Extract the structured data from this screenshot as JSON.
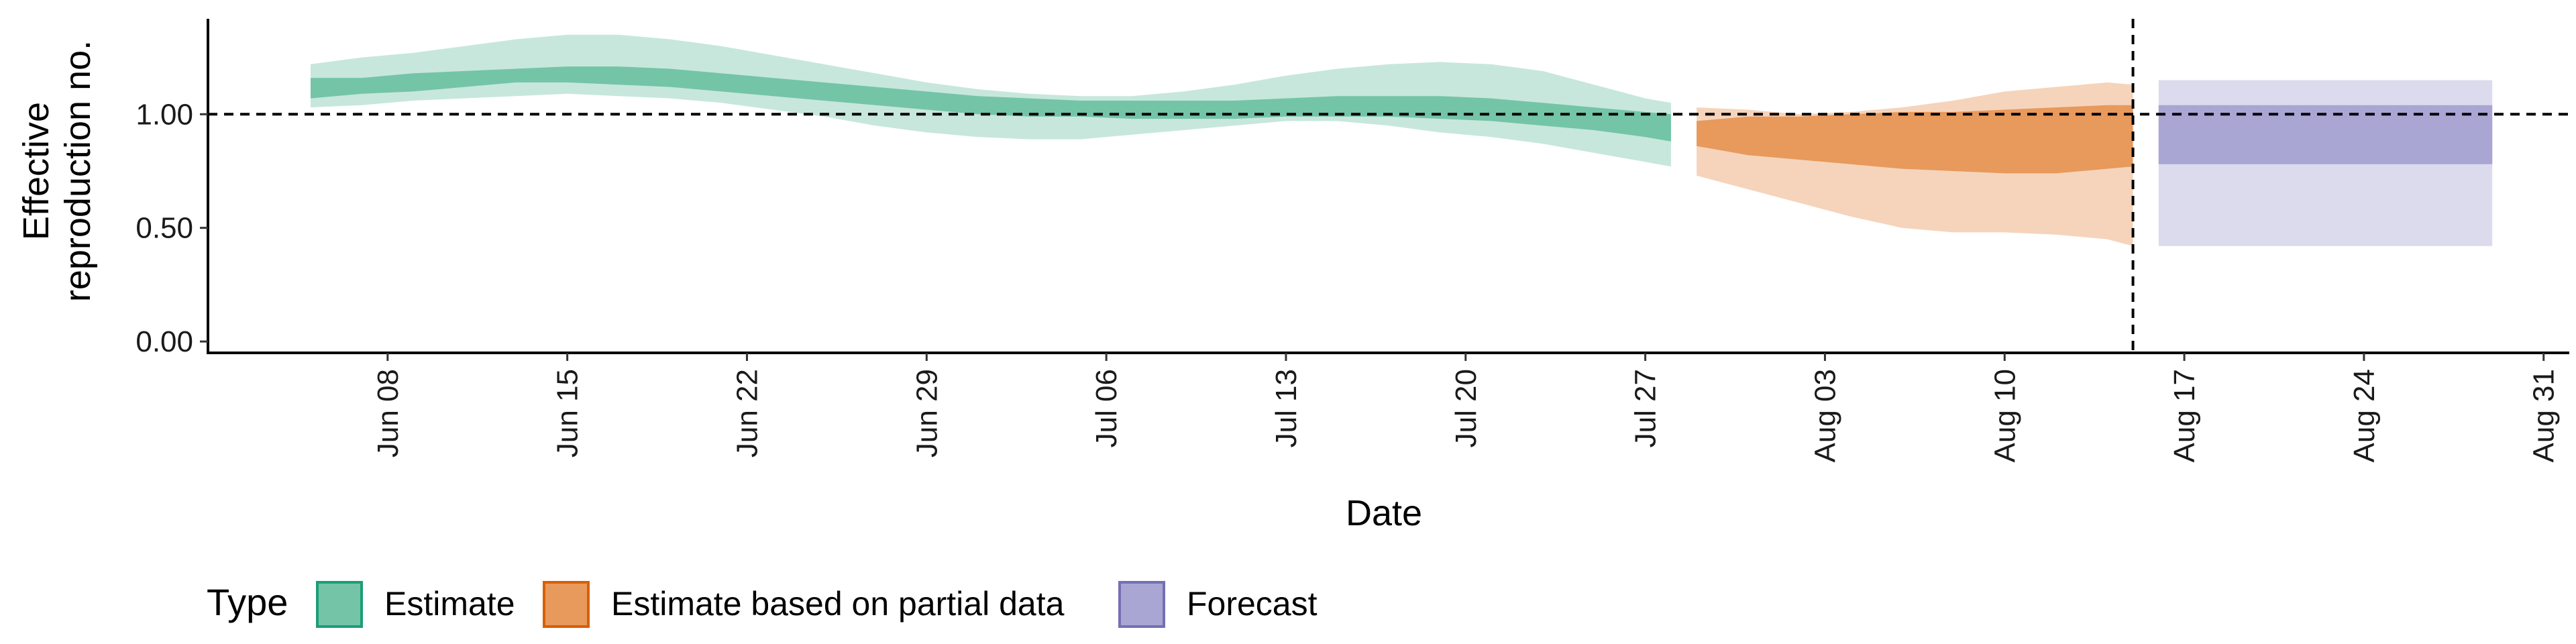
{
  "chart_data": {
    "type": "area",
    "title": "",
    "xlabel": "Date",
    "ylabel": [
      "Effective",
      "reproduction no."
    ],
    "x_type": "date",
    "xlim": [
      "2020-06-01",
      "2020-09-01"
    ],
    "ylim": [
      -0.05,
      1.42
    ],
    "x_ticks": [
      {
        "date": "2020-06-08",
        "label": "Jun 08"
      },
      {
        "date": "2020-06-15",
        "label": "Jun 15"
      },
      {
        "date": "2020-06-22",
        "label": "Jun 22"
      },
      {
        "date": "2020-06-29",
        "label": "Jun 29"
      },
      {
        "date": "2020-07-06",
        "label": "Jul 06"
      },
      {
        "date": "2020-07-13",
        "label": "Jul 13"
      },
      {
        "date": "2020-07-20",
        "label": "Jul 20"
      },
      {
        "date": "2020-07-27",
        "label": "Jul 27"
      },
      {
        "date": "2020-08-03",
        "label": "Aug 03"
      },
      {
        "date": "2020-08-10",
        "label": "Aug 10"
      },
      {
        "date": "2020-08-17",
        "label": "Aug 17"
      },
      {
        "date": "2020-08-24",
        "label": "Aug 24"
      },
      {
        "date": "2020-08-31",
        "label": "Aug 31"
      }
    ],
    "y_ticks": [
      {
        "value": 0,
        "label": "0.00"
      },
      {
        "value": 0.5,
        "label": "0.50"
      },
      {
        "value": 1,
        "label": "1.00"
      }
    ],
    "reference_lines": {
      "horizontal": 1.0,
      "vertical_date": "2020-08-15"
    },
    "legend": {
      "title": "Type",
      "position": "bottom-left"
    },
    "series": [
      {
        "name": "Estimate",
        "color": "#1b9e77",
        "fill": "#74c4a8",
        "fill_light": "#c7e7dc",
        "x": [
          "2020-06-05",
          "2020-06-07",
          "2020-06-09",
          "2020-06-11",
          "2020-06-13",
          "2020-06-15",
          "2020-06-17",
          "2020-06-19",
          "2020-06-21",
          "2020-06-23",
          "2020-06-25",
          "2020-06-27",
          "2020-06-29",
          "2020-07-01",
          "2020-07-03",
          "2020-07-05",
          "2020-07-07",
          "2020-07-09",
          "2020-07-11",
          "2020-07-13",
          "2020-07-15",
          "2020-07-17",
          "2020-07-19",
          "2020-07-21",
          "2020-07-23",
          "2020-07-25",
          "2020-07-27",
          "2020-07-28"
        ],
        "inner_lower": [
          1.07,
          1.09,
          1.1,
          1.12,
          1.14,
          1.14,
          1.13,
          1.12,
          1.1,
          1.08,
          1.06,
          1.04,
          1.02,
          1.0,
          0.99,
          0.99,
          0.98,
          0.98,
          0.98,
          0.99,
          0.99,
          0.99,
          0.98,
          0.97,
          0.95,
          0.93,
          0.9,
          0.88
        ],
        "inner_upper": [
          1.16,
          1.16,
          1.18,
          1.19,
          1.2,
          1.21,
          1.21,
          1.2,
          1.18,
          1.16,
          1.14,
          1.12,
          1.1,
          1.08,
          1.07,
          1.06,
          1.06,
          1.06,
          1.06,
          1.07,
          1.08,
          1.08,
          1.08,
          1.07,
          1.05,
          1.03,
          1.01,
          1.0
        ],
        "outer_lower": [
          1.03,
          1.04,
          1.06,
          1.07,
          1.08,
          1.09,
          1.08,
          1.07,
          1.05,
          1.02,
          0.99,
          0.95,
          0.92,
          0.9,
          0.89,
          0.89,
          0.91,
          0.93,
          0.95,
          0.97,
          0.97,
          0.95,
          0.92,
          0.9,
          0.87,
          0.83,
          0.79,
          0.77
        ],
        "outer_upper": [
          1.22,
          1.25,
          1.27,
          1.3,
          1.33,
          1.35,
          1.35,
          1.33,
          1.3,
          1.26,
          1.22,
          1.18,
          1.14,
          1.11,
          1.09,
          1.08,
          1.08,
          1.1,
          1.13,
          1.17,
          1.2,
          1.22,
          1.23,
          1.22,
          1.19,
          1.13,
          1.07,
          1.05
        ]
      },
      {
        "name": "Estimate based on partial data",
        "color": "#d95f02",
        "fill": "#e8995c",
        "fill_light": "#f5d4bb",
        "x": [
          "2020-07-29",
          "2020-07-31",
          "2020-08-02",
          "2020-08-04",
          "2020-08-06",
          "2020-08-08",
          "2020-08-10",
          "2020-08-12",
          "2020-08-14",
          "2020-08-15"
        ],
        "inner_lower": [
          0.86,
          0.82,
          0.8,
          0.78,
          0.76,
          0.75,
          0.74,
          0.74,
          0.76,
          0.77
        ],
        "inner_upper": [
          0.97,
          0.99,
          0.99,
          1.0,
          1.01,
          1.01,
          1.02,
          1.03,
          1.04,
          1.04
        ],
        "outer_lower": [
          0.73,
          0.67,
          0.61,
          0.55,
          0.5,
          0.48,
          0.48,
          0.47,
          0.45,
          0.42
        ],
        "outer_upper": [
          1.03,
          1.02,
          1.0,
          1.01,
          1.03,
          1.06,
          1.1,
          1.12,
          1.14,
          1.13
        ]
      },
      {
        "name": "Forecast",
        "color": "#7570b3",
        "fill": "#a9a6d3",
        "fill_light": "#dcdbed",
        "x": [
          "2020-08-16",
          "2020-08-29"
        ],
        "inner_lower": [
          0.78,
          0.78
        ],
        "inner_upper": [
          1.04,
          1.04
        ],
        "outer_lower": [
          0.42,
          0.42
        ],
        "outer_upper": [
          1.15,
          1.15
        ]
      }
    ]
  }
}
